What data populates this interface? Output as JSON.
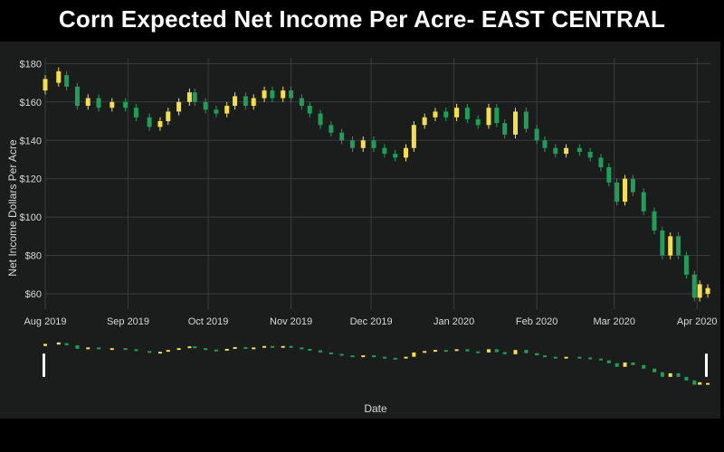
{
  "chart_data": {
    "type": "candlestick",
    "title": "Corn Expected Net Income Per Acre- EAST CENTRAL",
    "xlabel": "Date",
    "ylabel": "Net Income Dollars Per Acre",
    "yticks": [
      "$60",
      "$80",
      "$100",
      "$120",
      "$140",
      "$160",
      "$180"
    ],
    "ytick_values": [
      60,
      80,
      100,
      120,
      140,
      160,
      180
    ],
    "xticks": [
      "Aug 2019",
      "Sep 2019",
      "Oct 2019",
      "Nov 2019",
      "Dec 2019",
      "Jan 2020",
      "Feb 2020",
      "Mar 2020",
      "Apr 2020"
    ],
    "xtick_dates": [
      "2019-08-01",
      "2019-09-01",
      "2019-10-01",
      "2019-11-01",
      "2019-12-01",
      "2020-01-01",
      "2020-02-01",
      "2020-03-01",
      "2020-04-01"
    ],
    "x_range": [
      "2019-08-01",
      "2020-04-06"
    ],
    "ylim": [
      52,
      183
    ],
    "grid": true,
    "range_slider": true,
    "colors": {
      "increasing": "#f5e04a",
      "decreasing": "#1f9e5a"
    },
    "series": [
      {
        "points": [
          [
            "2019-08-01",
            166,
            172
          ],
          [
            "2019-08-06",
            170,
            176
          ],
          [
            "2019-08-09",
            174,
            168
          ],
          [
            "2019-08-13",
            168,
            158
          ],
          [
            "2019-08-17",
            158,
            162
          ],
          [
            "2019-08-21",
            162,
            157
          ],
          [
            "2019-08-26",
            157,
            160
          ],
          [
            "2019-08-31",
            160,
            157
          ],
          [
            "2019-09-04",
            157,
            152
          ],
          [
            "2019-09-09",
            152,
            147
          ],
          [
            "2019-09-13",
            147,
            150
          ],
          [
            "2019-09-16",
            150,
            155
          ],
          [
            "2019-09-20",
            155,
            160
          ],
          [
            "2019-09-24",
            160,
            165
          ],
          [
            "2019-09-26",
            165,
            160
          ],
          [
            "2019-09-30",
            160,
            156
          ],
          [
            "2019-10-04",
            156,
            154
          ],
          [
            "2019-10-08",
            154,
            158
          ],
          [
            "2019-10-11",
            158,
            163
          ],
          [
            "2019-10-15",
            163,
            158
          ],
          [
            "2019-10-18",
            158,
            162
          ],
          [
            "2019-10-22",
            162,
            166
          ],
          [
            "2019-10-25",
            166,
            162
          ],
          [
            "2019-10-29",
            162,
            166
          ],
          [
            "2019-11-01",
            166,
            162
          ],
          [
            "2019-11-05",
            162,
            158
          ],
          [
            "2019-11-08",
            158,
            154
          ],
          [
            "2019-11-12",
            154,
            148
          ],
          [
            "2019-11-16",
            148,
            144
          ],
          [
            "2019-11-20",
            144,
            140
          ],
          [
            "2019-11-24",
            140,
            136
          ],
          [
            "2019-11-28",
            136,
            140
          ],
          [
            "2019-12-02",
            140,
            136
          ],
          [
            "2019-12-06",
            136,
            133
          ],
          [
            "2019-12-10",
            133,
            131
          ],
          [
            "2019-12-14",
            131,
            136
          ],
          [
            "2019-12-17",
            136,
            148
          ],
          [
            "2019-12-21",
            148,
            152
          ],
          [
            "2019-12-25",
            152,
            155
          ],
          [
            "2019-12-29",
            155,
            152
          ],
          [
            "2020-01-02",
            152,
            157
          ],
          [
            "2020-01-06",
            157,
            151
          ],
          [
            "2020-01-10",
            151,
            148
          ],
          [
            "2020-01-14",
            148,
            157
          ],
          [
            "2020-01-17",
            157,
            149
          ],
          [
            "2020-01-20",
            149,
            143
          ],
          [
            "2020-01-24",
            143,
            155
          ],
          [
            "2020-01-28",
            155,
            146
          ],
          [
            "2020-02-01",
            146,
            140
          ],
          [
            "2020-02-04",
            140,
            136
          ],
          [
            "2020-02-08",
            136,
            133
          ],
          [
            "2020-02-12",
            133,
            136
          ],
          [
            "2020-02-17",
            136,
            134
          ],
          [
            "2020-02-21",
            134,
            131
          ],
          [
            "2020-02-25",
            131,
            126
          ],
          [
            "2020-02-28",
            126,
            118
          ],
          [
            "2020-03-02",
            118,
            108
          ],
          [
            "2020-03-05",
            108,
            120
          ],
          [
            "2020-03-08",
            120,
            113
          ],
          [
            "2020-03-12",
            113,
            103
          ],
          [
            "2020-03-16",
            103,
            93
          ],
          [
            "2020-03-19",
            93,
            80
          ],
          [
            "2020-03-22",
            80,
            90
          ],
          [
            "2020-03-25",
            90,
            80
          ],
          [
            "2020-03-28",
            80,
            70
          ],
          [
            "2020-03-31",
            70,
            58
          ],
          [
            "2020-04-02",
            58,
            65
          ],
          [
            "2020-04-05",
            60,
            63
          ]
        ]
      }
    ]
  }
}
